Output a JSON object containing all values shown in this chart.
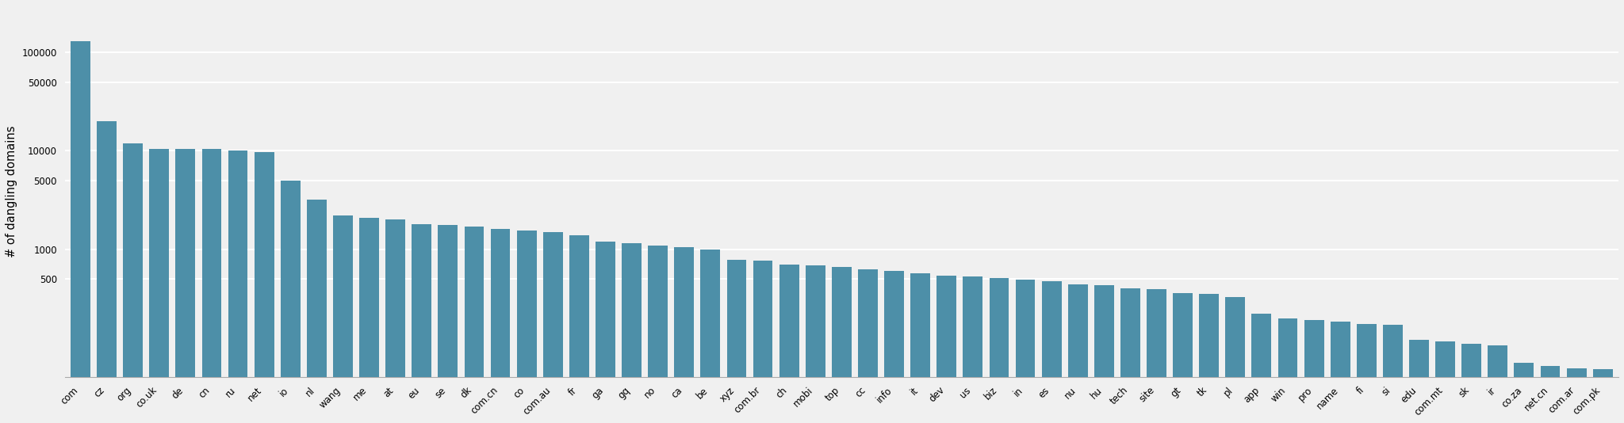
{
  "categories": [
    "com",
    "cz",
    "org",
    "co.uk",
    "de",
    "cn",
    "ru",
    "net",
    "io",
    "nl",
    "wang",
    "me",
    "at",
    "eu",
    "se",
    "dk",
    "com.cn",
    "co",
    "com.au",
    "fr",
    "ga",
    "gq",
    "no",
    "ca",
    "be",
    "xyz",
    "com.br",
    "ch",
    "mobi",
    "top",
    "cc",
    "info",
    "it",
    "dev",
    "us",
    "biz",
    "in",
    "es",
    "nu",
    "hu",
    "tech",
    "site",
    "gt",
    "tk",
    "pl",
    "app",
    "win",
    "pro",
    "name",
    "fi",
    "si",
    "edu",
    "com.mt",
    "sk",
    "ir",
    "co.za",
    "net.cn",
    "com.ar",
    "com.pk"
  ],
  "values": [
    130000,
    20000,
    12000,
    10500,
    10500,
    10500,
    10000,
    9700,
    5000,
    3200,
    2200,
    2100,
    2000,
    1800,
    1750,
    1700,
    1600,
    1550,
    1500,
    1400,
    1200,
    1150,
    1100,
    1050,
    1000,
    780,
    760,
    700,
    680,
    660,
    630,
    600,
    570,
    540,
    530,
    510,
    490,
    470,
    440,
    430,
    400,
    390,
    360,
    350,
    330,
    220,
    200,
    190,
    185,
    175,
    170,
    120,
    115,
    110,
    105,
    70,
    65,
    62,
    60
  ],
  "bar_color": "#4d8fa8",
  "ylabel": "# of dangling domains",
  "yticks": [
    500,
    1000,
    5000,
    10000,
    50000,
    100000
  ],
  "ytick_labels": [
    "500",
    "1000",
    "5000",
    "10000",
    "50000",
    "100000"
  ],
  "ylim_min": 50,
  "ylim_max": 300000,
  "bg_color": "#f0f0f0",
  "grid_color": "#ffffff",
  "tick_label_fontsize": 8.5,
  "ylabel_fontsize": 10.5
}
